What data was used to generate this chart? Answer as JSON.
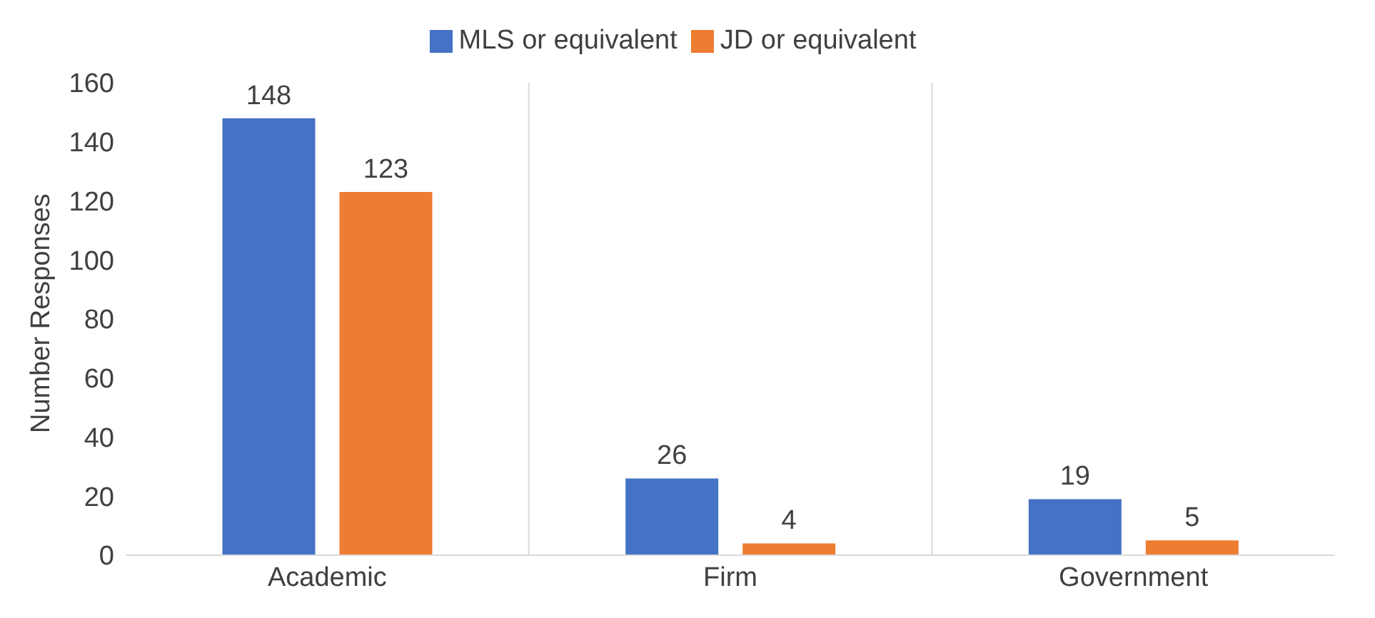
{
  "chart_data": {
    "type": "bar",
    "ylabel": "Number Responses",
    "categories": [
      "Academic",
      "Firm",
      "Government"
    ],
    "series": [
      {
        "name": "MLS or equivalent",
        "color": "#4472c4",
        "values": [
          148,
          26,
          19
        ]
      },
      {
        "name": "JD or equivalent",
        "color": "#ed7d31",
        "values": [
          123,
          4,
          5
        ]
      }
    ],
    "ylim": [
      0,
      160
    ],
    "yticks": [
      0,
      20,
      40,
      60,
      80,
      100,
      120,
      140,
      160
    ],
    "grid": "x",
    "legend": "top",
    "data_labels": true
  }
}
